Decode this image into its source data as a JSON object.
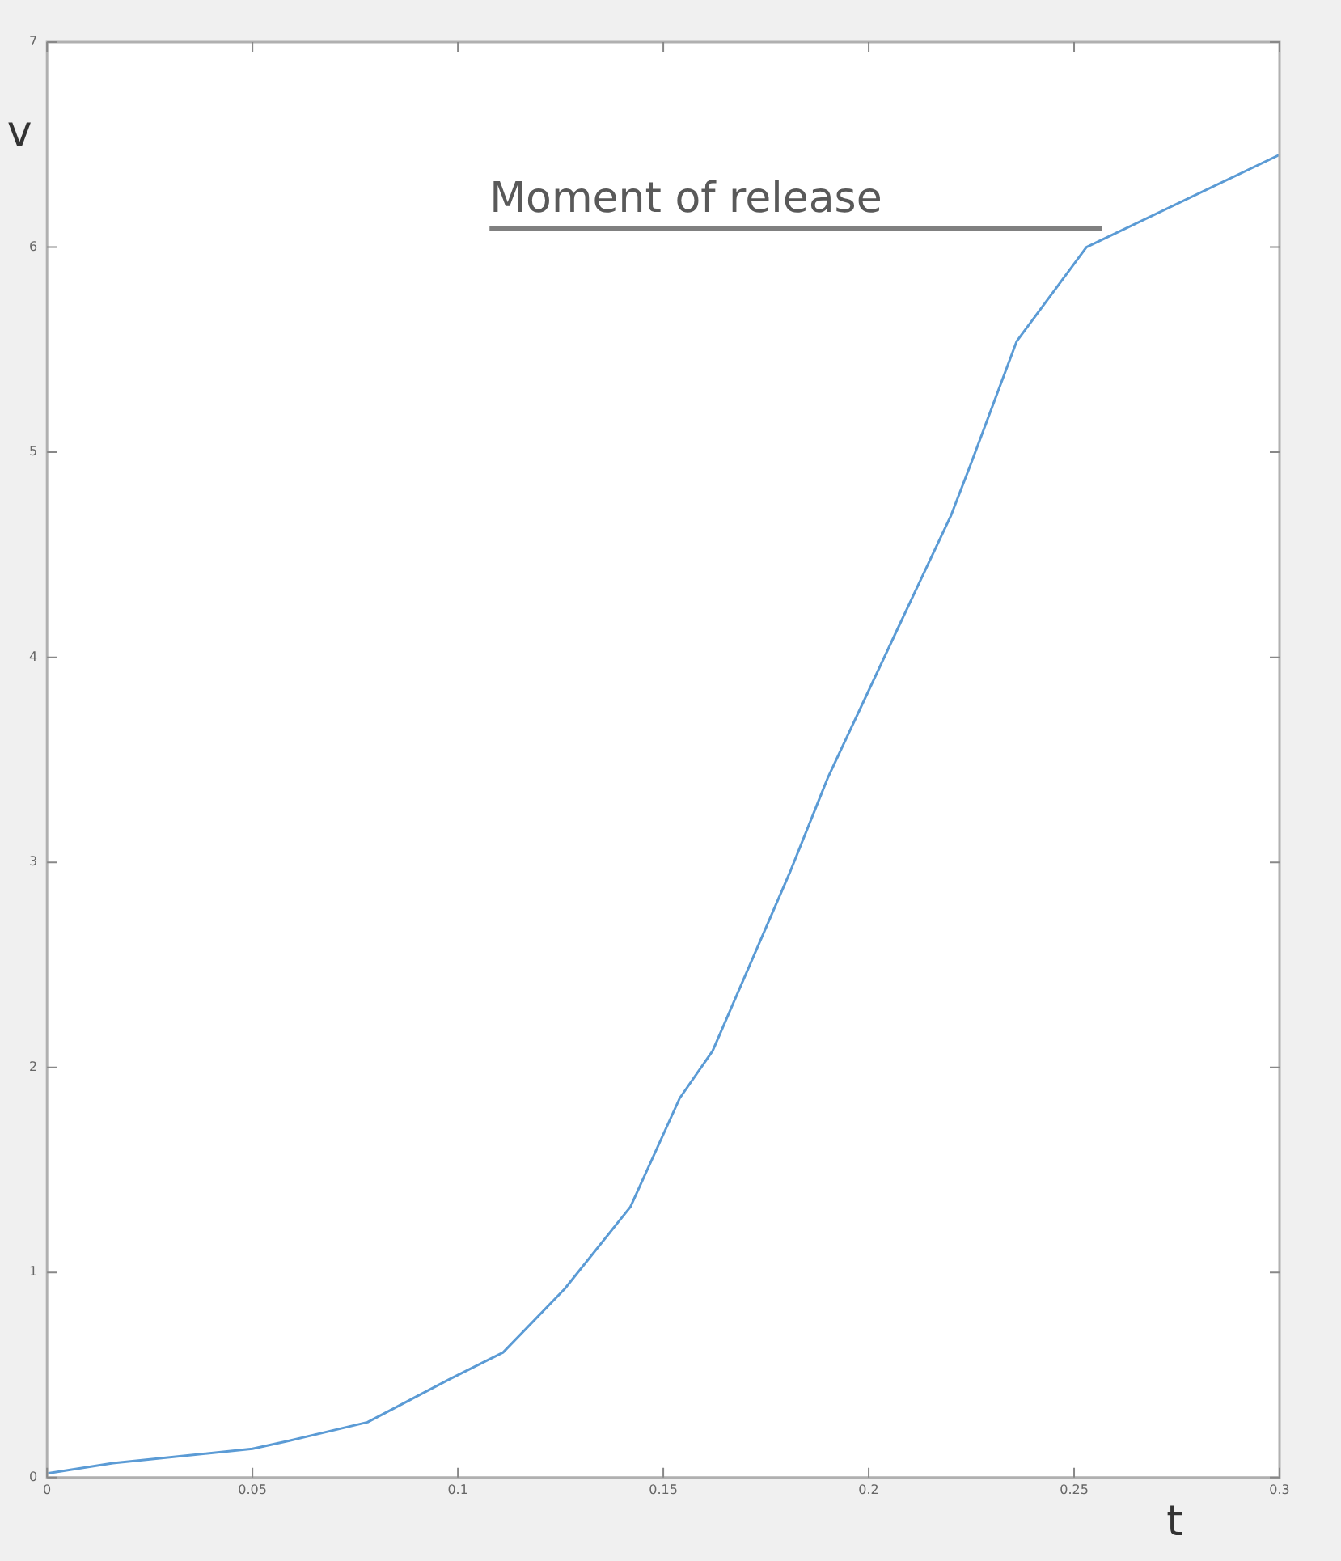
{
  "chart_data": {
    "type": "line",
    "xlabel": "t",
    "ylabel": "v",
    "x": [
      0,
      0.016,
      0.05,
      0.059,
      0.078,
      0.098,
      0.111,
      0.126,
      0.142,
      0.154,
      0.162,
      0.181,
      0.19,
      0.208,
      0.22,
      0.225,
      0.236,
      0.253,
      0.3
    ],
    "series": [
      {
        "color": "#5b9bd5",
        "values": [
          0.02,
          0.07,
          0.14,
          0.18,
          0.27,
          0.48,
          0.61,
          0.92,
          1.32,
          1.85,
          2.08,
          2.96,
          3.41,
          4.18,
          4.69,
          4.95,
          5.54,
          6.0,
          6.45
        ]
      }
    ],
    "xlim": [
      0,
      0.3
    ],
    "xticks": [
      0,
      0.05,
      0.1,
      0.15,
      0.2,
      0.25,
      0.3
    ],
    "ylim": [
      0,
      7
    ],
    "yticks": [
      0,
      1,
      2,
      3,
      4,
      5,
      6,
      7
    ],
    "grid": false,
    "legend": false,
    "marker": "none",
    "line_style": "solid",
    "annotations": [
      "Moment of release"
    ]
  }
}
